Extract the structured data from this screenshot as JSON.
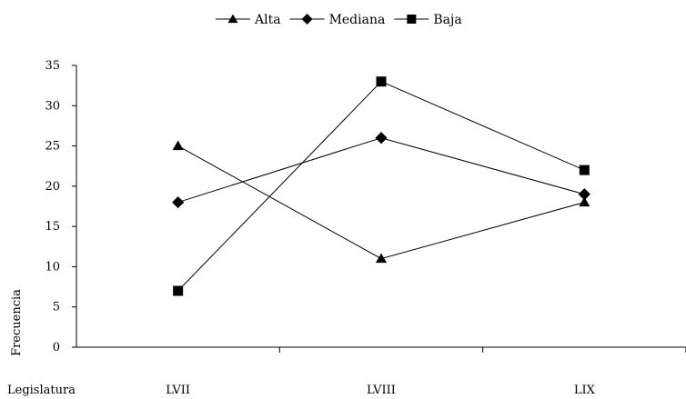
{
  "chart_data": {
    "type": "line",
    "title": "",
    "xlabel": "Legislatura",
    "ylabel": "Frecuencia",
    "categories": [
      "LVII",
      "LVIII",
      "LIX"
    ],
    "ylim": [
      0,
      35
    ],
    "yticks": [
      0,
      5,
      10,
      15,
      20,
      25,
      30,
      35
    ],
    "grid": false,
    "legend_position": "top",
    "series": [
      {
        "name": "Alta",
        "marker": "triangle",
        "values": [
          25,
          11,
          18
        ]
      },
      {
        "name": "Mediana",
        "marker": "diamond",
        "values": [
          18,
          26,
          19
        ]
      },
      {
        "name": "Baja",
        "marker": "square",
        "values": [
          7,
          33,
          22
        ]
      }
    ]
  }
}
